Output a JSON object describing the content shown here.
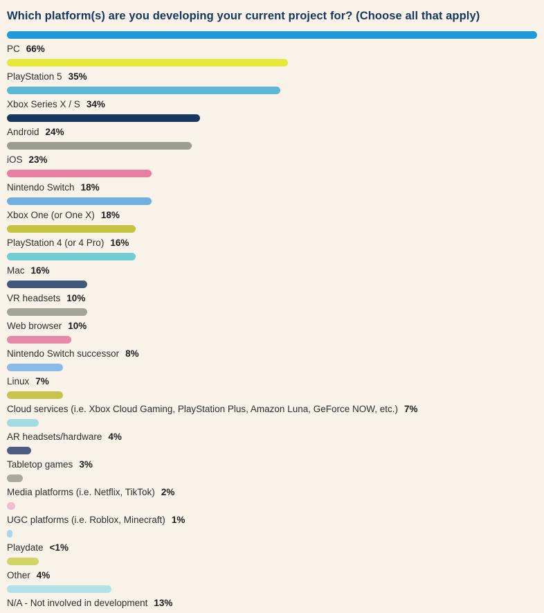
{
  "theme": {
    "background": "#f8f2e9",
    "title_color": "#16375f",
    "label_color": "#2e2e2e",
    "pct_color": "#1b1b1b"
  },
  "chart_data": {
    "type": "bar",
    "orientation": "horizontal",
    "title": "Which platform(s) are you developing your current project for? (Choose all that apply)",
    "xlabel": "",
    "ylabel": "",
    "xlim": [
      0,
      66
    ],
    "grid": false,
    "legend": false,
    "rows": [
      {
        "label": "PC",
        "pct": "66%",
        "value": 66,
        "color": "#1e9bd7"
      },
      {
        "label": "PlayStation 5",
        "pct": "35%",
        "value": 35,
        "color": "#e6e93b"
      },
      {
        "label": "Xbox Series X / S",
        "pct": "34%",
        "value": 34,
        "color": "#5cb8d5"
      },
      {
        "label": "Android",
        "pct": "24%",
        "value": 24,
        "color": "#17375f"
      },
      {
        "label": "iOS",
        "pct": "23%",
        "value": 23,
        "color": "#9c9c90"
      },
      {
        "label": "Nintendo Switch",
        "pct": "18%",
        "value": 18,
        "color": "#e87ea1"
      },
      {
        "label": "Xbox One (or One X)",
        "pct": "18%",
        "value": 18,
        "color": "#6fb0e0"
      },
      {
        "label": "PlayStation 4 (or 4 Pro)",
        "pct": "16%",
        "value": 16,
        "color": "#c5c441"
      },
      {
        "label": "Mac",
        "pct": "16%",
        "value": 16,
        "color": "#72ccd4"
      },
      {
        "label": "VR headsets",
        "pct": "10%",
        "value": 10,
        "color": "#41587d"
      },
      {
        "label": "Web browser",
        "pct": "10%",
        "value": 10,
        "color": "#a3a398"
      },
      {
        "label": "Nintendo Switch successor",
        "pct": "8%",
        "value": 8,
        "color": "#e888a8"
      },
      {
        "label": "Linux",
        "pct": "7%",
        "value": 7,
        "color": "#8abbe8"
      },
      {
        "label": "Cloud services (i.e. Xbox Cloud Gaming, PlayStation Plus, Amazon Luna, GeForce NOW, etc.)",
        "pct": "7%",
        "value": 7,
        "color": "#c6c44e"
      },
      {
        "label": "AR headsets/hardware",
        "pct": "4%",
        "value": 4,
        "color": "#a2dbe2"
      },
      {
        "label": "Tabletop games",
        "pct": "3%",
        "value": 3,
        "color": "#4d5c80"
      },
      {
        "label": "Media platforms (i.e. Netflix, TikTok)",
        "pct": "2%",
        "value": 2,
        "color": "#a8a89e"
      },
      {
        "label": "UGC platforms (i.e. Roblox, Minecraft)",
        "pct": "1%",
        "value": 1,
        "color": "#f2bccd"
      },
      {
        "label": "Playdate",
        "pct": "<1%",
        "value": 0.6,
        "color": "#a9d4f2"
      },
      {
        "label": "Other",
        "pct": "4%",
        "value": 4,
        "color": "#d2d468"
      },
      {
        "label": "N/A - Not involved in development",
        "pct": "13%",
        "value": 13,
        "color": "#b2e2e8"
      }
    ]
  }
}
